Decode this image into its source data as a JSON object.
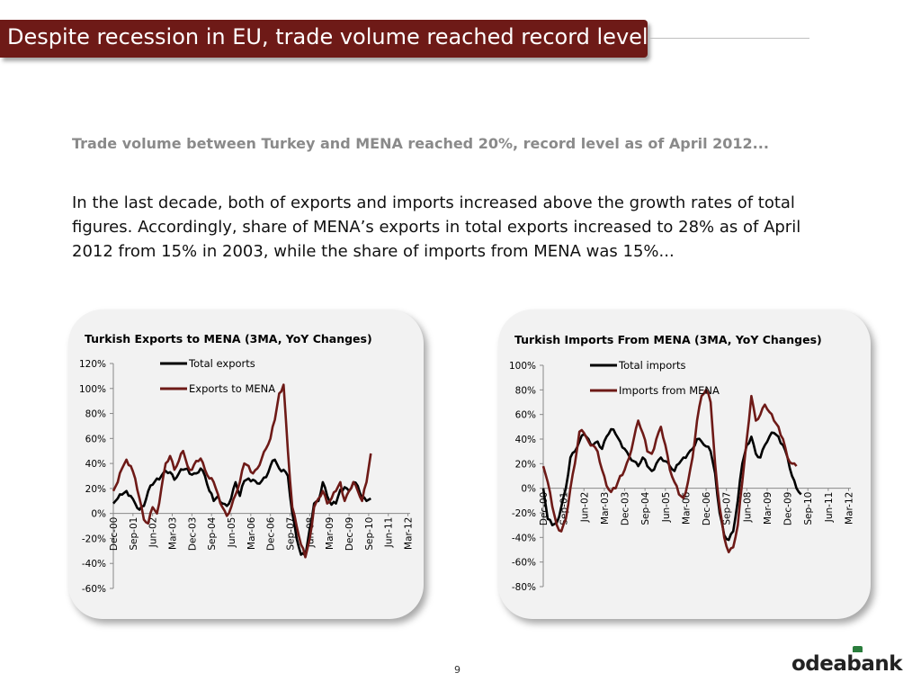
{
  "header": {
    "title": "Despite recession in EU, trade volume reached record level"
  },
  "subtitle": "Trade volume between Turkey and MENA reached 20%, record level as of April 2012...",
  "paragraph": "In the last decade, both of exports and imports increased above the growth rates of total figures. Accordingly, share of MENA’s exports in total exports increased to 28% as of April 2012 from 15% in 2003, while the share of imports from MENA was 15%...",
  "page_number": "9",
  "logo": {
    "text": "odeabank",
    "mark_color": "#2a7d3c"
  },
  "colors": {
    "title_bar": "#6e1a17",
    "series_total": "#000000",
    "series_mena": "#6e1a17"
  },
  "chart_data": [
    {
      "type": "line",
      "title": "Turkish Exports to MENA (3MA, YoY Changes)",
      "xlabel": "",
      "ylabel": "",
      "ylim": [
        -60,
        120
      ],
      "yticks": [
        "-60%",
        "-40%",
        "-20%",
        "0%",
        "20%",
        "40%",
        "60%",
        "80%",
        "100%",
        "120%"
      ],
      "x_ticks": [
        "Dec-00",
        "Sep-01",
        "Jun-02",
        "Mar-03",
        "Dec-03",
        "Sep-04",
        "Jun-05",
        "Mar-06",
        "Dec-06",
        "Sep-07",
        "Jun-08",
        "Mar-09",
        "Dec-09",
        "Sep-10",
        "Jun-11",
        "Mar-12"
      ],
      "legend": [
        "Total exports",
        "Exports to MENA"
      ],
      "series": [
        {
          "name": "Total exports",
          "knots": [
            [
              0,
              8
            ],
            [
              2,
              12
            ],
            [
              4,
              15
            ],
            [
              6,
              18
            ],
            [
              8,
              14
            ],
            [
              10,
              8
            ],
            [
              12,
              3
            ],
            [
              14,
              6
            ],
            [
              16,
              18
            ],
            [
              18,
              23
            ],
            [
              20,
              28
            ],
            [
              22,
              30
            ],
            [
              24,
              34
            ],
            [
              26,
              33
            ],
            [
              28,
              27
            ],
            [
              30,
              32
            ],
            [
              32,
              35
            ],
            [
              34,
              36
            ],
            [
              36,
              31
            ],
            [
              38,
              32
            ],
            [
              40,
              36
            ],
            [
              42,
              30
            ],
            [
              44,
              18
            ],
            [
              46,
              10
            ],
            [
              48,
              14
            ],
            [
              50,
              8
            ],
            [
              52,
              6
            ],
            [
              54,
              12
            ],
            [
              56,
              25
            ],
            [
              58,
              14
            ],
            [
              60,
              26
            ],
            [
              62,
              28
            ],
            [
              64,
              27
            ],
            [
              66,
              24
            ],
            [
              68,
              26
            ],
            [
              70,
              29
            ],
            [
              72,
              38
            ],
            [
              74,
              43
            ],
            [
              76,
              36
            ],
            [
              78,
              35
            ],
            [
              80,
              30
            ],
            [
              82,
              0
            ],
            [
              84,
              -20
            ],
            [
              86,
              -33
            ],
            [
              88,
              -34
            ],
            [
              90,
              -12
            ],
            [
              92,
              8
            ],
            [
              94,
              10
            ],
            [
              96,
              25
            ],
            [
              98,
              14
            ],
            [
              100,
              7
            ],
            [
              102,
              8
            ],
            [
              104,
              19
            ],
            [
              106,
              21
            ],
            [
              108,
              18
            ],
            [
              110,
              25
            ],
            [
              112,
              22
            ],
            [
              114,
              12
            ],
            [
              116,
              10
            ],
            [
              118,
              12
            ]
          ]
        },
        {
          "name": "Exports to MENA",
          "knots": [
            [
              0,
              18
            ],
            [
              2,
              25
            ],
            [
              4,
              36
            ],
            [
              6,
              43
            ],
            [
              8,
              38
            ],
            [
              10,
              28
            ],
            [
              12,
              12
            ],
            [
              14,
              -5
            ],
            [
              16,
              -8
            ],
            [
              18,
              5
            ],
            [
              20,
              0
            ],
            [
              22,
              20
            ],
            [
              24,
              40
            ],
            [
              26,
              46
            ],
            [
              28,
              35
            ],
            [
              30,
              42
            ],
            [
              32,
              50
            ],
            [
              34,
              38
            ],
            [
              36,
              35
            ],
            [
              38,
              42
            ],
            [
              40,
              44
            ],
            [
              42,
              35
            ],
            [
              44,
              28
            ],
            [
              46,
              25
            ],
            [
              48,
              15
            ],
            [
              50,
              5
            ],
            [
              52,
              -2
            ],
            [
              54,
              5
            ],
            [
              56,
              15
            ],
            [
              58,
              25
            ],
            [
              60,
              40
            ],
            [
              62,
              38
            ],
            [
              64,
              32
            ],
            [
              66,
              36
            ],
            [
              68,
              44
            ],
            [
              70,
              52
            ],
            [
              72,
              60
            ],
            [
              74,
              75
            ],
            [
              76,
              96
            ],
            [
              78,
              103
            ],
            [
              80,
              50
            ],
            [
              82,
              5
            ],
            [
              84,
              -10
            ],
            [
              86,
              -25
            ],
            [
              88,
              -35
            ],
            [
              90,
              -20
            ],
            [
              92,
              5
            ],
            [
              94,
              12
            ],
            [
              96,
              18
            ],
            [
              98,
              8
            ],
            [
              100,
              12
            ],
            [
              102,
              18
            ],
            [
              104,
              25
            ],
            [
              106,
              10
            ],
            [
              108,
              18
            ],
            [
              110,
              25
            ],
            [
              112,
              18
            ],
            [
              114,
              10
            ],
            [
              116,
              25
            ],
            [
              118,
              48
            ]
          ]
        }
      ]
    },
    {
      "type": "line",
      "title": "Turkish Imports From MENA (3MA, YoY Changes)",
      "xlabel": "",
      "ylabel": "",
      "ylim": [
        -80,
        100
      ],
      "yticks": [
        "-80%",
        "-60%",
        "-40%",
        "-20%",
        "0%",
        "20%",
        "40%",
        "60%",
        "80%",
        "100%"
      ],
      "x_ticks": [
        "Dec-00",
        "Sep-01",
        "Jun-02",
        "Mar-03",
        "Dec-03",
        "Sep-04",
        "Jun-05",
        "Mar-06",
        "Dec-06",
        "Sep-07",
        "Jun-08",
        "Mar-09",
        "Dec-09",
        "Sep-10",
        "Jun-11",
        "Mar-12"
      ],
      "legend": [
        "Total imports",
        "Imports from MENA"
      ],
      "series": [
        {
          "name": "Total imports",
          "knots": [
            [
              0,
              0
            ],
            [
              2,
              -25
            ],
            [
              4,
              -30
            ],
            [
              6,
              -28
            ],
            [
              8,
              -15
            ],
            [
              10,
              0
            ],
            [
              12,
              25
            ],
            [
              14,
              30
            ],
            [
              16,
              38
            ],
            [
              18,
              44
            ],
            [
              20,
              40
            ],
            [
              22,
              35
            ],
            [
              24,
              38
            ],
            [
              26,
              32
            ],
            [
              28,
              42
            ],
            [
              30,
              48
            ],
            [
              32,
              44
            ],
            [
              34,
              38
            ],
            [
              36,
              32
            ],
            [
              38,
              26
            ],
            [
              40,
              22
            ],
            [
              42,
              18
            ],
            [
              44,
              25
            ],
            [
              46,
              18
            ],
            [
              48,
              14
            ],
            [
              50,
              20
            ],
            [
              52,
              25
            ],
            [
              54,
              22
            ],
            [
              56,
              18
            ],
            [
              58,
              14
            ],
            [
              60,
              20
            ],
            [
              62,
              25
            ],
            [
              64,
              28
            ],
            [
              66,
              32
            ],
            [
              68,
              40
            ],
            [
              70,
              38
            ],
            [
              72,
              34
            ],
            [
              74,
              30
            ],
            [
              76,
              12
            ],
            [
              78,
              -20
            ],
            [
              80,
              -38
            ],
            [
              82,
              -42
            ],
            [
              84,
              -35
            ],
            [
              86,
              -10
            ],
            [
              88,
              20
            ],
            [
              90,
              35
            ],
            [
              92,
              42
            ],
            [
              94,
              28
            ],
            [
              96,
              25
            ],
            [
              98,
              35
            ],
            [
              100,
              42
            ],
            [
              102,
              45
            ],
            [
              104,
              42
            ],
            [
              106,
              35
            ],
            [
              108,
              25
            ],
            [
              110,
              10
            ],
            [
              112,
              0
            ],
            [
              114,
              -5
            ]
          ]
        },
        {
          "name": "Imports from MENA",
          "knots": [
            [
              0,
              18
            ],
            [
              2,
              5
            ],
            [
              4,
              -15
            ],
            [
              6,
              -30
            ],
            [
              8,
              -35
            ],
            [
              10,
              -25
            ],
            [
              12,
              0
            ],
            [
              14,
              20
            ],
            [
              16,
              46
            ],
            [
              18,
              45
            ],
            [
              20,
              38
            ],
            [
              22,
              35
            ],
            [
              24,
              30
            ],
            [
              26,
              15
            ],
            [
              28,
              2
            ],
            [
              30,
              -3
            ],
            [
              32,
              0
            ],
            [
              34,
              10
            ],
            [
              36,
              15
            ],
            [
              38,
              25
            ],
            [
              40,
              40
            ],
            [
              42,
              55
            ],
            [
              44,
              45
            ],
            [
              46,
              30
            ],
            [
              48,
              28
            ],
            [
              50,
              40
            ],
            [
              52,
              50
            ],
            [
              54,
              35
            ],
            [
              56,
              15
            ],
            [
              58,
              5
            ],
            [
              60,
              -5
            ],
            [
              62,
              -8
            ],
            [
              64,
              5
            ],
            [
              66,
              25
            ],
            [
              68,
              55
            ],
            [
              70,
              75
            ],
            [
              72,
              80
            ],
            [
              74,
              70
            ],
            [
              76,
              20
            ],
            [
              78,
              -15
            ],
            [
              80,
              -40
            ],
            [
              82,
              -52
            ],
            [
              84,
              -48
            ],
            [
              86,
              -30
            ],
            [
              88,
              5
            ],
            [
              90,
              40
            ],
            [
              92,
              75
            ],
            [
              94,
              55
            ],
            [
              96,
              60
            ],
            [
              98,
              68
            ],
            [
              100,
              62
            ],
            [
              102,
              55
            ],
            [
              104,
              50
            ],
            [
              106,
              40
            ],
            [
              108,
              25
            ],
            [
              110,
              20
            ],
            [
              112,
              18
            ]
          ]
        }
      ]
    }
  ]
}
